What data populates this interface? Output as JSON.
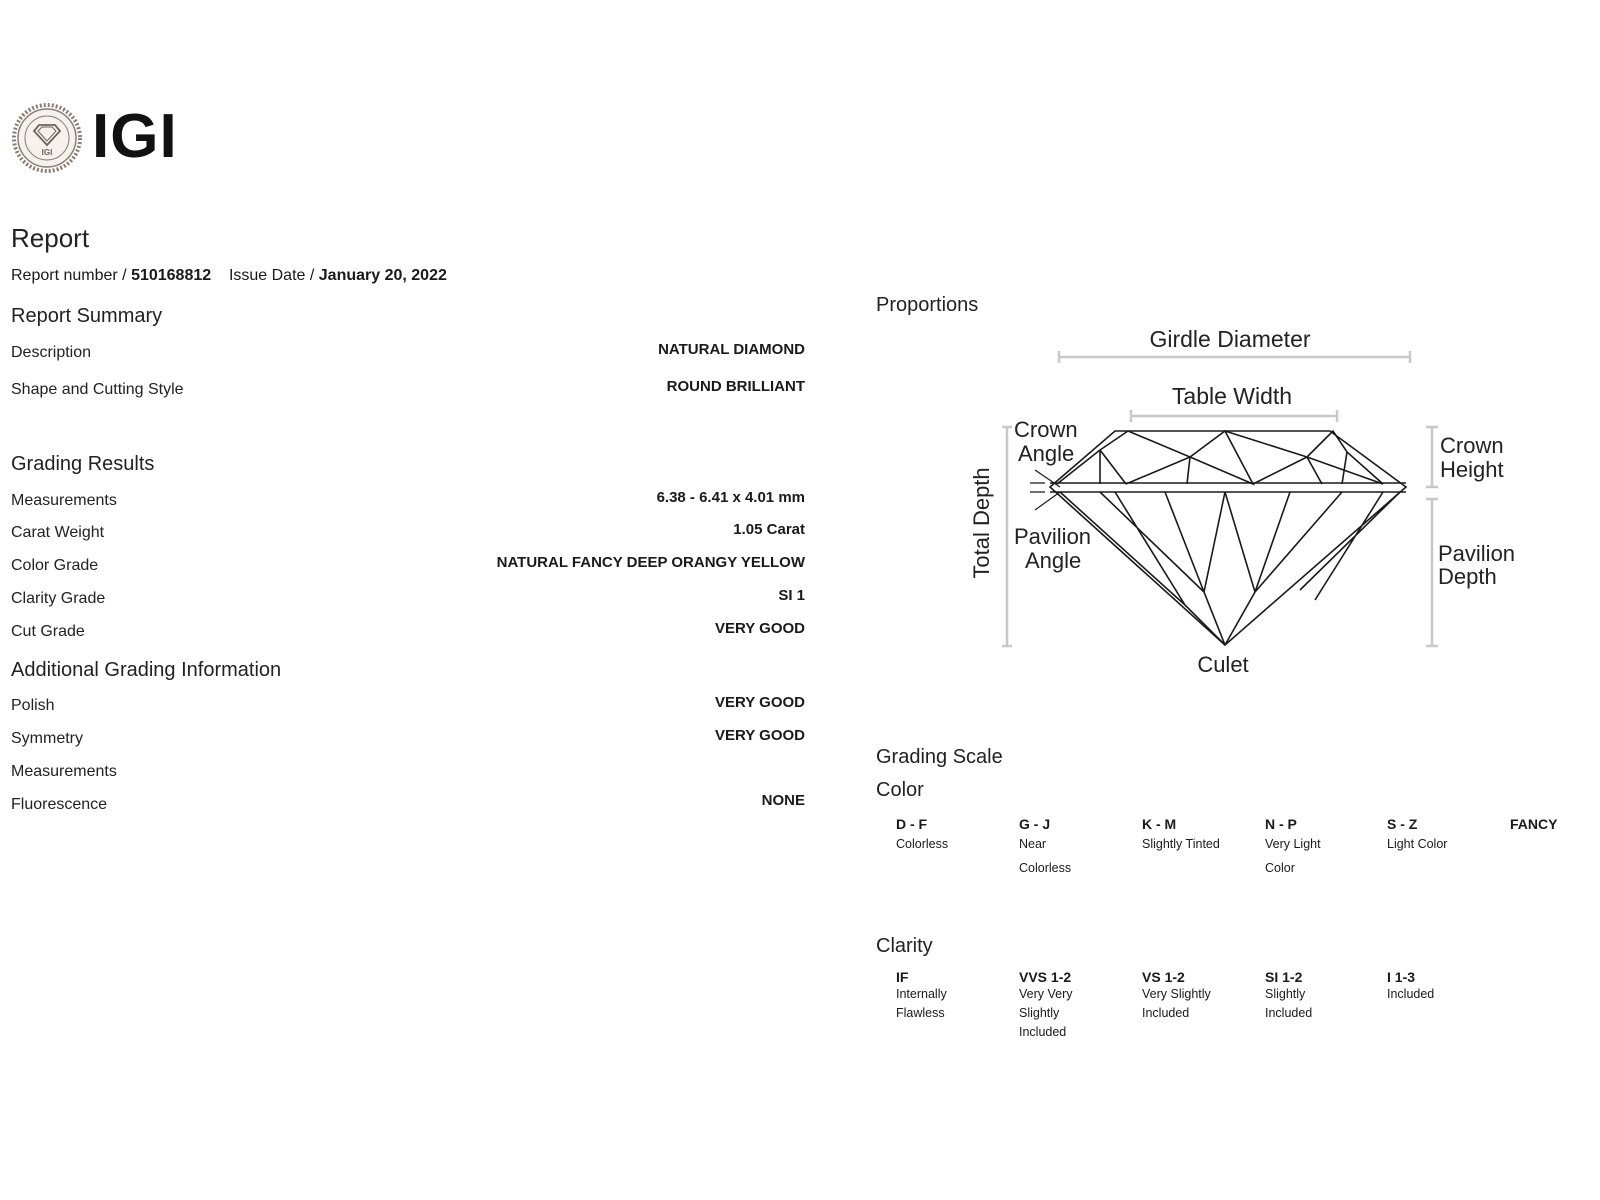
{
  "logo": {
    "text": "IGI",
    "seal_text": "INTERNATIONAL GEMOLOGICAL INSTITUTE 1975"
  },
  "report": {
    "title": "Report",
    "number_label": "Report number /",
    "number": "510168812",
    "date_label": "Issue Date /",
    "date": "January 20, 2022"
  },
  "summary": {
    "heading": "Report Summary",
    "rows": [
      {
        "label": "Description",
        "value": "NATURAL DIAMOND"
      },
      {
        "label": "Shape and Cutting Style",
        "value": "ROUND BRILLIANT"
      }
    ]
  },
  "grading": {
    "heading": "Grading Results",
    "rows": [
      {
        "label": "Measurements",
        "value": "6.38 - 6.41 x 4.01 mm"
      },
      {
        "label": "Carat Weight",
        "value": "1.05 Carat"
      },
      {
        "label": "Color Grade",
        "value": "NATURAL FANCY DEEP ORANGY YELLOW"
      },
      {
        "label": "Clarity Grade",
        "value": "SI 1"
      },
      {
        "label": "Cut Grade",
        "value": "VERY GOOD"
      }
    ]
  },
  "additional": {
    "heading": "Additional Grading Information",
    "rows": [
      {
        "label": "Polish",
        "value": "VERY GOOD"
      },
      {
        "label": "Symmetry",
        "value": "VERY GOOD"
      },
      {
        "label": "Measurements",
        "value": ""
      },
      {
        "label": "Fluorescence",
        "value": "NONE"
      }
    ]
  },
  "proportions": {
    "heading": "Proportions",
    "labels": {
      "girdle_diameter": "Girdle Diameter",
      "table_width": "Table Width",
      "crown_angle_1": "Crown",
      "crown_angle_2": "Angle",
      "pavilion_angle_1": "Pavilion",
      "pavilion_angle_2": "Angle",
      "total_depth": "Total Depth",
      "crown_height_1": "Crown",
      "crown_height_2": "Height",
      "pavilion_depth_1": "Pavilion",
      "pavilion_depth_2": "Depth",
      "culet": "Culet"
    }
  },
  "grading_scale": {
    "heading": "Grading Scale",
    "color": {
      "heading": "Color",
      "items": [
        {
          "code": "D - F",
          "desc": "Colorless"
        },
        {
          "code": "G - J",
          "desc": "Near Colorless"
        },
        {
          "code": "K - M",
          "desc": "Slightly Tinted"
        },
        {
          "code": "N - P",
          "desc": "Very Light Color"
        },
        {
          "code": "S - Z",
          "desc": "Light Color"
        },
        {
          "code": "FANCY",
          "desc": ""
        }
      ]
    },
    "clarity": {
      "heading": "Clarity",
      "items": [
        {
          "code": "IF",
          "desc": "Internally Flawless"
        },
        {
          "code": "VVS 1-2",
          "desc": "Very Very Slightly Included"
        },
        {
          "code": "VS 1-2",
          "desc": "Very Slightly Included"
        },
        {
          "code": "SI 1-2",
          "desc": "Slightly Included"
        },
        {
          "code": "I 1-3",
          "desc": "Included"
        }
      ]
    }
  },
  "colors": {
    "text": "#1a1a1a",
    "dimension_line": "#c8c8c8",
    "seal": "#8a7e74"
  }
}
